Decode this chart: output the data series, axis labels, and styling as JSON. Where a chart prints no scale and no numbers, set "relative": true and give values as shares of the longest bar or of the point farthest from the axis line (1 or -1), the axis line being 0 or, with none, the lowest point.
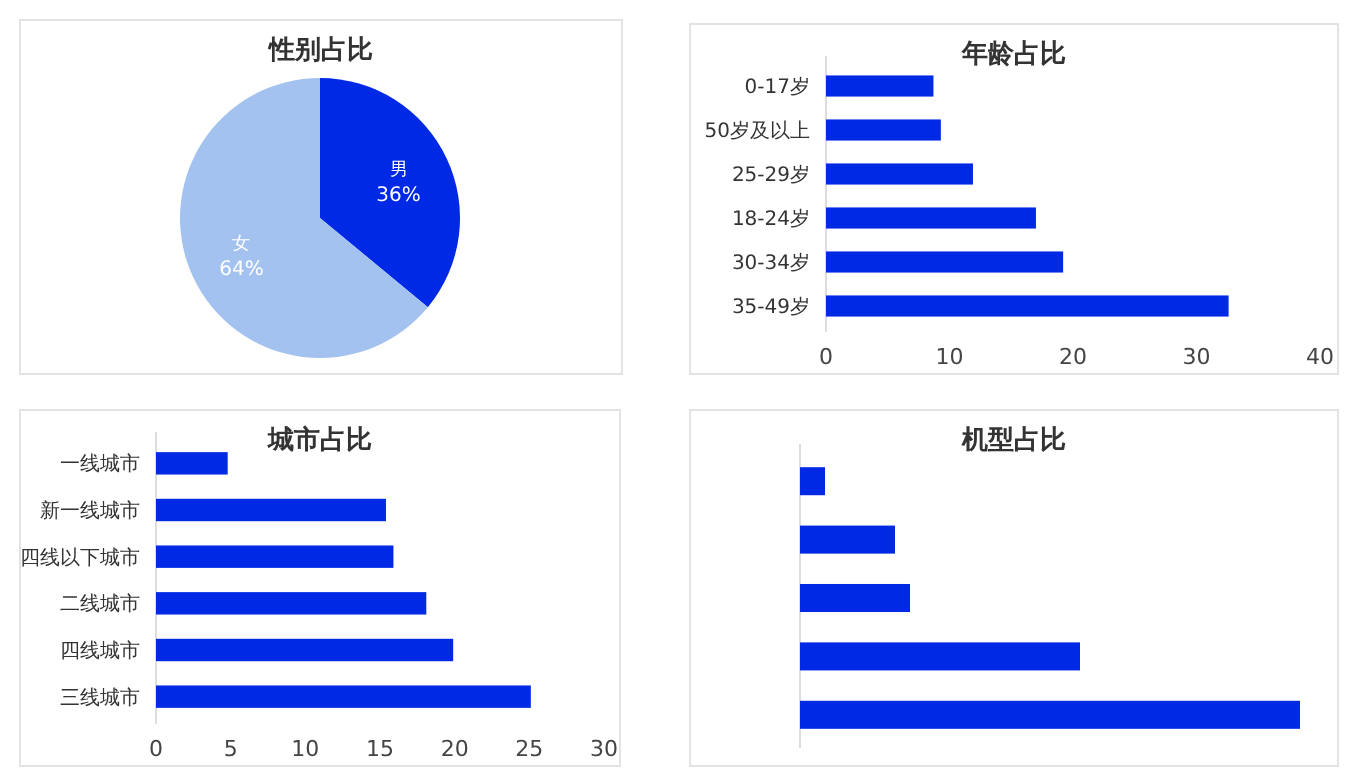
{
  "chart_data": [
    {
      "type": "pie",
      "title": "性别占比",
      "categories": [
        "男",
        "女"
      ],
      "values": [
        36,
        64
      ],
      "colors": [
        "#0029e6",
        "#a3c2f0"
      ],
      "value_labels": [
        "36%",
        "64%"
      ]
    },
    {
      "type": "bar",
      "orientation": "horizontal",
      "title": "年龄占比",
      "categories": [
        "0-17岁",
        "50岁及以上",
        "25-29岁",
        "18-24岁",
        "30-34岁",
        "35-49岁"
      ],
      "values": [
        8.7,
        9.3,
        11.9,
        17.0,
        19.2,
        32.6
      ],
      "color": "#0029e6",
      "xlim": [
        0,
        40
      ],
      "xticks": [
        0,
        10,
        20,
        30,
        40
      ],
      "grid": false
    },
    {
      "type": "bar",
      "orientation": "horizontal",
      "title": "城市占比",
      "categories": [
        "一线城市",
        "新一线城市",
        "四线以下城市",
        "二线城市",
        "四线城市",
        "三线城市"
      ],
      "values": [
        4.8,
        15.4,
        15.9,
        18.1,
        19.9,
        25.1
      ],
      "color": "#0029e6",
      "xlim": [
        0,
        30
      ],
      "xticks": [
        0,
        5,
        10,
        15,
        20,
        25,
        30
      ],
      "grid": false
    },
    {
      "type": "bar",
      "orientation": "horizontal",
      "relative": true,
      "title": "机型占比",
      "categories": [
        null,
        null,
        null,
        null,
        null
      ],
      "values": [
        0.05,
        0.19,
        0.22,
        0.56,
        1
      ],
      "color": "#0029e6",
      "grid": false
    }
  ]
}
